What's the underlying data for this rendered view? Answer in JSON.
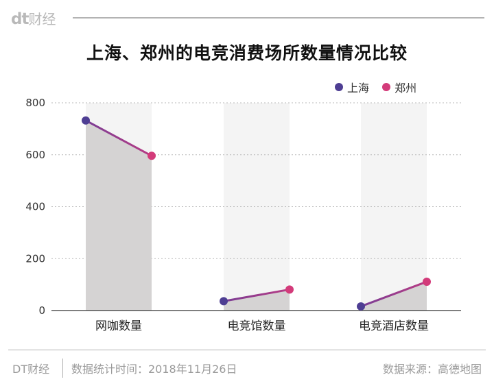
{
  "header": {
    "brand_dt": "dt",
    "brand_name": "财经"
  },
  "chart_data": {
    "type": "line",
    "title": "上海、郑州的电竞消费场所数量情况比较",
    "categories": [
      "网咖数量",
      "电竞馆数量",
      "电竞酒店数量"
    ],
    "series": [
      {
        "name": "上海",
        "values": [
          732,
          36,
          16
        ],
        "color": "#4e3e93"
      },
      {
        "name": "郑州",
        "values": [
          596,
          81,
          111
        ],
        "color": "#d33b7a"
      }
    ],
    "ylim": [
      0,
      800
    ],
    "yticks": [
      0,
      200,
      400,
      600,
      800
    ],
    "grid": true,
    "legend_position": "top-right",
    "line_gradient": [
      "#7a3d95",
      "#b83c84"
    ],
    "area_color": "#d5d3d3",
    "band_color": "#f4f4f4"
  },
  "footer": {
    "brand": "DT财经",
    "time": "数据统计时间：2018年11月26日",
    "source": "数据来源：高德地图"
  }
}
